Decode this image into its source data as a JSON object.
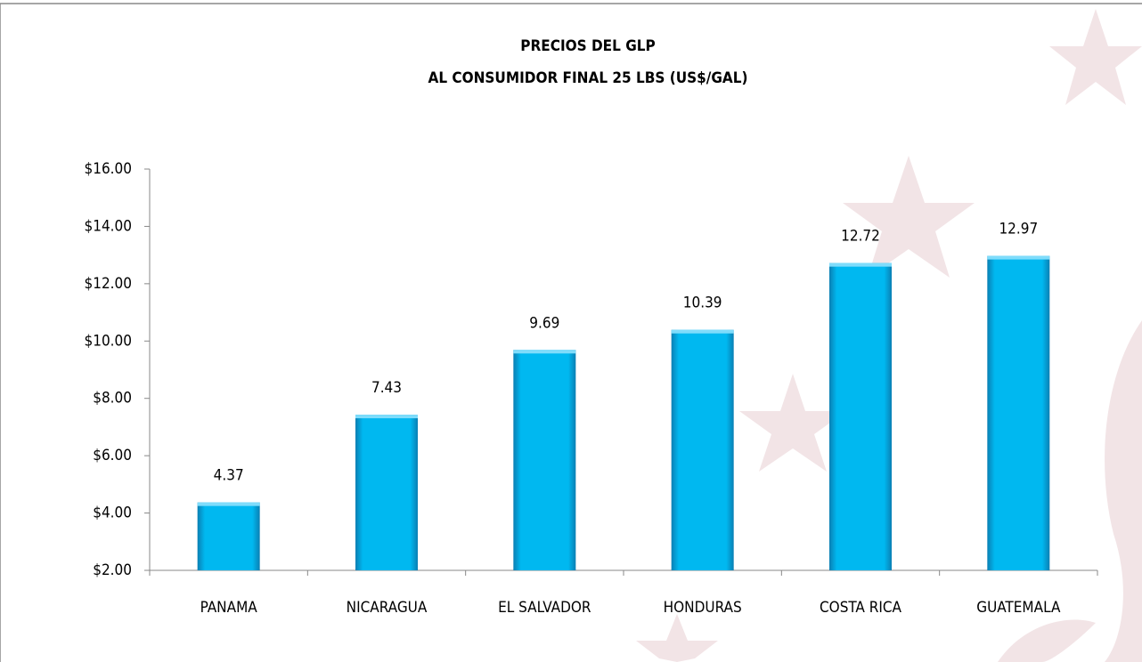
{
  "chart_data": {
    "type": "bar",
    "title": "PRECIOS DEL GLP",
    "subtitle": "AL CONSUMIDOR FINAL 25 LBS (US$/GAL)",
    "categories": [
      "PANAMA",
      "NICARAGUA",
      "EL SALVADOR",
      "HONDURAS",
      "COSTA RICA",
      "GUATEMALA"
    ],
    "values": [
      4.37,
      7.43,
      9.69,
      10.39,
      12.72,
      12.97
    ],
    "color": "#00b8f0",
    "ylim": [
      2,
      16
    ],
    "yticks": [
      {
        "value": 2,
        "label": "$2.00"
      },
      {
        "value": 4,
        "label": "$4.00"
      },
      {
        "value": 6,
        "label": "$6.00"
      },
      {
        "value": 8,
        "label": "$8.00"
      },
      {
        "value": 10,
        "label": "$10.00"
      },
      {
        "value": 12,
        "label": "$12.00"
      },
      {
        "value": 14,
        "label": "$14.00"
      },
      {
        "value": 16,
        "label": "$16.00"
      }
    ],
    "grid": false
  }
}
